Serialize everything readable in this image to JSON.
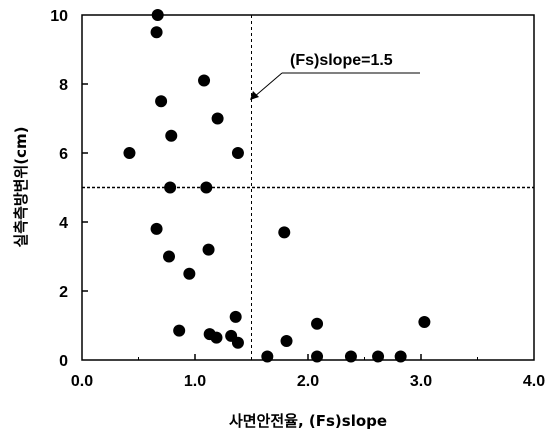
{
  "chart_data": {
    "type": "scatter",
    "title": "",
    "xlabel": "사면안전율, (Fs)slope",
    "ylabel": "실측측방변위(cm)",
    "xlim": [
      0.0,
      4.0
    ],
    "ylim": [
      0,
      10
    ],
    "x_ticks": [
      "0.0",
      "1.0",
      "2.0",
      "3.0",
      "4.0"
    ],
    "y_ticks": [
      "0",
      "2",
      "4",
      "6",
      "8",
      "10"
    ],
    "grid": false,
    "reference_lines": [
      {
        "orientation": "vertical",
        "value": 1.5,
        "style": "dashed"
      },
      {
        "orientation": "horizontal",
        "value": 5.0,
        "style": "dashed"
      }
    ],
    "annotations": [
      {
        "text": "(Fs)slope=1.5",
        "points_to": {
          "x": 1.5,
          "y": 8.2
        }
      }
    ],
    "points": [
      {
        "x": 0.42,
        "y": 6.0
      },
      {
        "x": 0.67,
        "y": 10.0
      },
      {
        "x": 0.66,
        "y": 9.5
      },
      {
        "x": 0.7,
        "y": 7.5
      },
      {
        "x": 0.79,
        "y": 6.5
      },
      {
        "x": 0.78,
        "y": 5.0
      },
      {
        "x": 0.66,
        "y": 3.8
      },
      {
        "x": 0.77,
        "y": 3.0
      },
      {
        "x": 0.95,
        "y": 2.5
      },
      {
        "x": 0.86,
        "y": 0.85
      },
      {
        "x": 1.08,
        "y": 8.1
      },
      {
        "x": 1.1,
        "y": 5.0
      },
      {
        "x": 1.12,
        "y": 3.2
      },
      {
        "x": 1.2,
        "y": 7.0
      },
      {
        "x": 1.13,
        "y": 0.75
      },
      {
        "x": 1.19,
        "y": 0.65
      },
      {
        "x": 1.32,
        "y": 0.7
      },
      {
        "x": 1.36,
        "y": 1.25
      },
      {
        "x": 1.38,
        "y": 6.0
      },
      {
        "x": 1.38,
        "y": 0.5
      },
      {
        "x": 1.64,
        "y": 0.1
      },
      {
        "x": 1.79,
        "y": 3.7
      },
      {
        "x": 1.81,
        "y": 0.55
      },
      {
        "x": 2.08,
        "y": 1.05
      },
      {
        "x": 2.08,
        "y": 0.1
      },
      {
        "x": 2.38,
        "y": 0.1
      },
      {
        "x": 2.62,
        "y": 0.1
      },
      {
        "x": 2.82,
        "y": 0.1
      },
      {
        "x": 3.03,
        "y": 1.1
      }
    ]
  }
}
